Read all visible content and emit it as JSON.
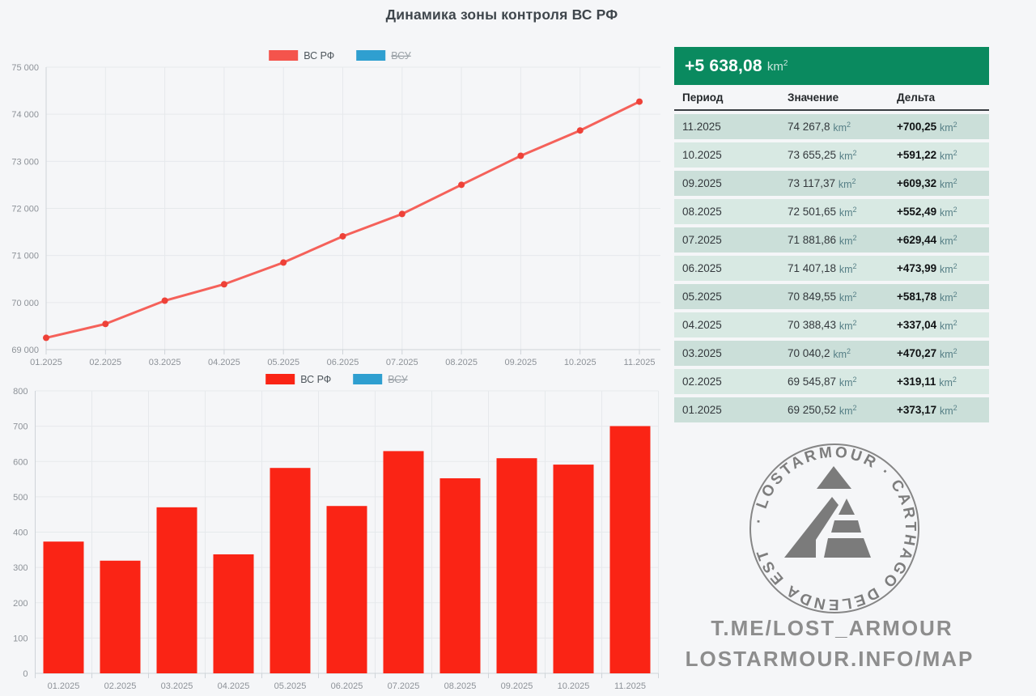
{
  "page": {
    "title": "Динамика зоны контроля ВС РФ"
  },
  "colors": {
    "background": "#f5f6f8",
    "bar_red": "#fa2415",
    "line_red": "#f4544c",
    "point_red": "#ee4138",
    "blue": "#2f9fd0",
    "green_header": "#0a8a5f",
    "row_dark": "#cbdfd9",
    "row_light": "#d8e9e3",
    "unit_teal": "#567f86",
    "grid": "#e6e9ec",
    "axis": "#cfd4d9",
    "tick_text": "#8d9298",
    "legend_text": "#4e565c",
    "legend_text_disabled": "#9aa1a7",
    "watermark_gray": "#868686"
  },
  "chart_data": [
    {
      "type": "line",
      "categories": [
        "01.2025",
        "02.2025",
        "03.2025",
        "04.2025",
        "05.2025",
        "06.2025",
        "07.2025",
        "08.2025",
        "09.2025",
        "10.2025",
        "11.2025"
      ],
      "series": [
        {
          "name": "ВС РФ",
          "hidden": false,
          "values": [
            69250.52,
            69545.87,
            70040.2,
            70388.43,
            70849.55,
            71407.18,
            71881.86,
            72501.65,
            73117.37,
            73655.25,
            74267.8
          ]
        },
        {
          "name": "ВСУ",
          "hidden": true,
          "values": []
        }
      ],
      "ylim": [
        69000,
        75000
      ],
      "ytick_step": 1000,
      "ytick_labels": [
        "69 000",
        "70 000",
        "71 000",
        "72 000",
        "73 000",
        "74 000",
        "75 000"
      ],
      "grid": true,
      "legend_position": "top-center",
      "xlabel": "",
      "ylabel": ""
    },
    {
      "type": "bar",
      "categories": [
        "01.2025",
        "02.2025",
        "03.2025",
        "04.2025",
        "05.2025",
        "06.2025",
        "07.2025",
        "08.2025",
        "09.2025",
        "10.2025",
        "11.2025"
      ],
      "series": [
        {
          "name": "ВС РФ",
          "hidden": false,
          "values": [
            373.17,
            319.11,
            470.27,
            337.04,
            581.78,
            473.99,
            629.44,
            552.49,
            609.32,
            591.22,
            700.25
          ]
        },
        {
          "name": "ВСУ",
          "hidden": true,
          "values": []
        }
      ],
      "ylim": [
        0,
        800
      ],
      "ytick_step": 100,
      "ytick_labels": [
        "0",
        "100",
        "200",
        "300",
        "400",
        "500",
        "600",
        "700",
        "800"
      ],
      "grid": true,
      "legend_position": "top-center",
      "xlabel": "",
      "ylabel": ""
    }
  ],
  "table": {
    "summary_delta": "+5 638,08",
    "unit": "km²",
    "columns": [
      "Период",
      "Значение",
      "Дельта"
    ],
    "rows": [
      {
        "period": "11.2025",
        "value": "74 267,8",
        "delta": "+700,25"
      },
      {
        "period": "10.2025",
        "value": "73 655,25",
        "delta": "+591,22"
      },
      {
        "period": "09.2025",
        "value": "73 117,37",
        "delta": "+609,32"
      },
      {
        "period": "08.2025",
        "value": "72 501,65",
        "delta": "+552,49"
      },
      {
        "period": "07.2025",
        "value": "71 881,86",
        "delta": "+629,44"
      },
      {
        "period": "06.2025",
        "value": "71 407,18",
        "delta": "+473,99"
      },
      {
        "period": "05.2025",
        "value": "70 849,55",
        "delta": "+581,78"
      },
      {
        "period": "04.2025",
        "value": "70 388,43",
        "delta": "+337,04"
      },
      {
        "period": "03.2025",
        "value": "70 040,2",
        "delta": "+470,27"
      },
      {
        "period": "02.2025",
        "value": "69 545,87",
        "delta": "+319,11"
      },
      {
        "period": "01.2025",
        "value": "69 250,52",
        "delta": "+373,17"
      }
    ]
  },
  "watermark": {
    "ring_text": "· LOSTARMOUR · CARTHAGO DELENDA EST",
    "links": [
      "T.ME/LOST_ARMOUR",
      "LOSTARMOUR.INFO/MAP"
    ]
  }
}
